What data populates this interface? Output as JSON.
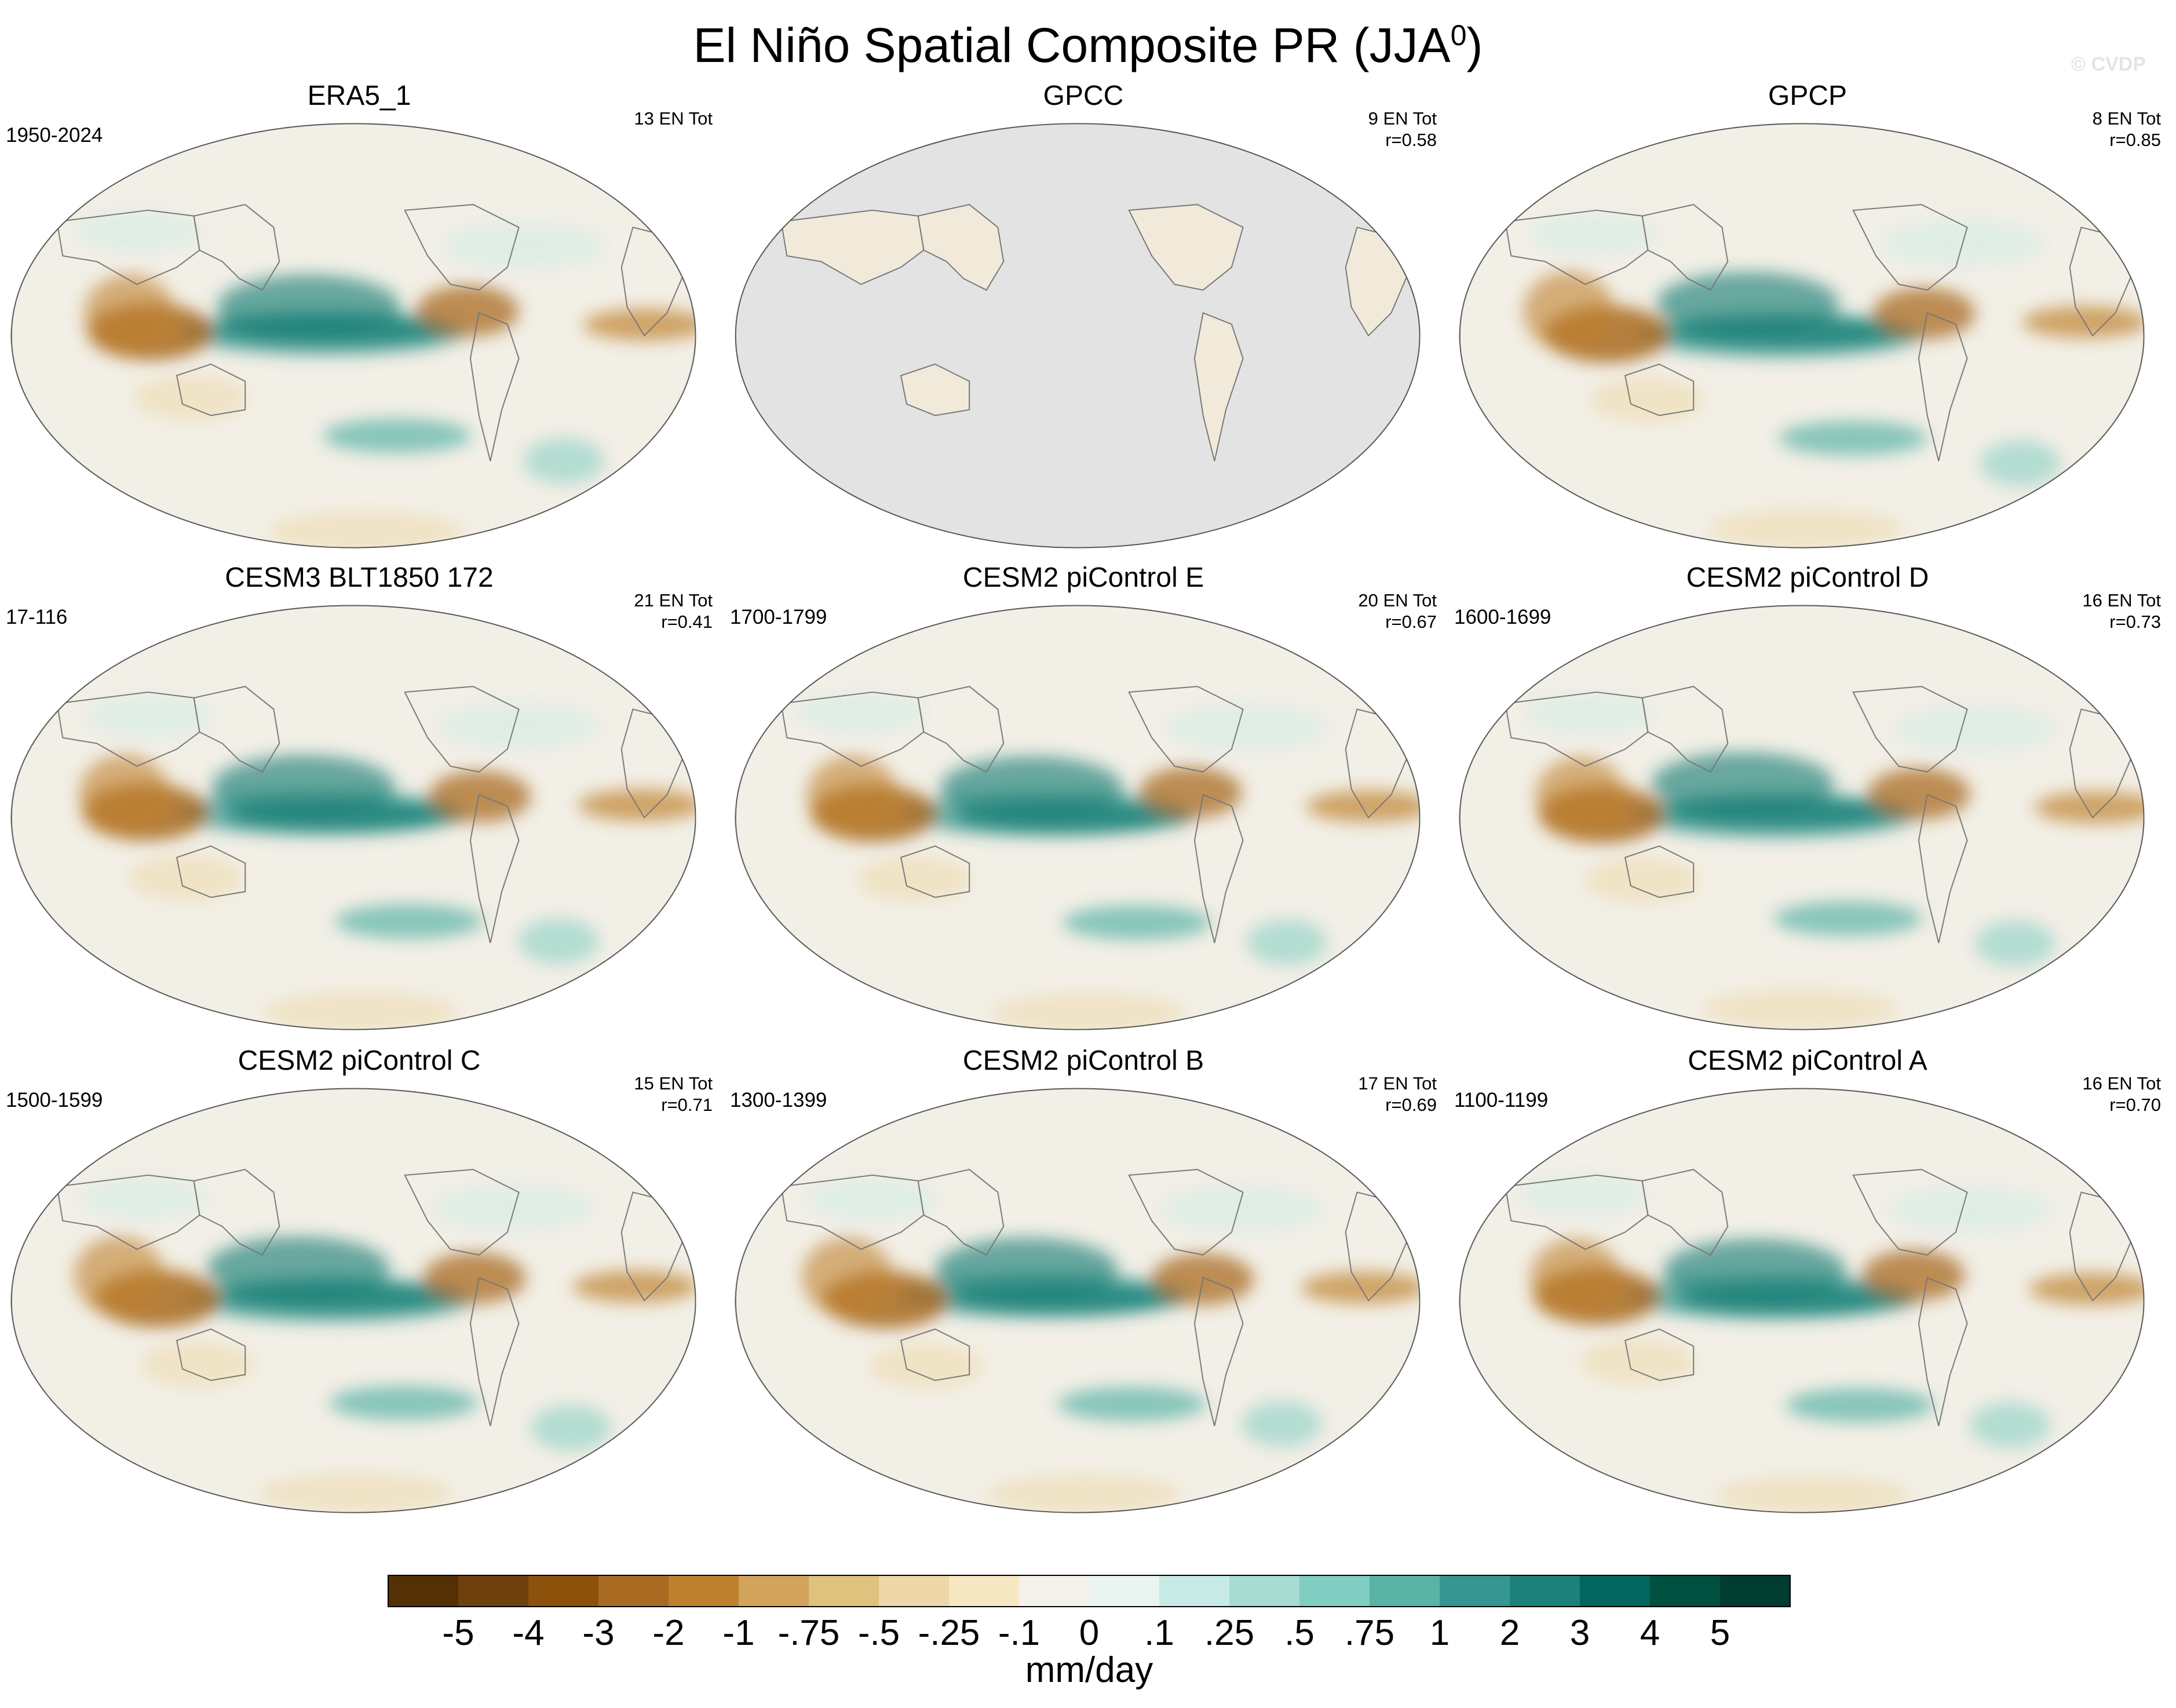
{
  "figure": {
    "title": "El Niño Spatial Composite PR (JJA",
    "title_superscript": "0",
    "title_close": ")",
    "watermark": "© CVDP"
  },
  "panels": [
    {
      "title": "ERA5_1",
      "period": "1950-2024",
      "events": "13 EN Tot",
      "corr": "",
      "land_only": false
    },
    {
      "title": "GPCC",
      "period": "",
      "events": "9 EN Tot",
      "corr": "r=0.58",
      "land_only": true
    },
    {
      "title": "GPCP",
      "period": "",
      "events": "8 EN Tot",
      "corr": "r=0.85",
      "land_only": false
    },
    {
      "title": "CESM3 BLT1850 172",
      "period": "17-116",
      "events": "21 EN Tot",
      "corr": "r=0.41",
      "land_only": false
    },
    {
      "title": "CESM2 piControl E",
      "period": "1700-1799",
      "events": "20 EN Tot",
      "corr": "r=0.67",
      "land_only": false
    },
    {
      "title": "CESM2 piControl D",
      "period": "1600-1699",
      "events": "16 EN Tot",
      "corr": "r=0.73",
      "land_only": false
    },
    {
      "title": "CESM2 piControl C",
      "period": "1500-1599",
      "events": "15 EN Tot",
      "corr": "r=0.71",
      "land_only": false
    },
    {
      "title": "CESM2 piControl B",
      "period": "1300-1399",
      "events": "17 EN Tot",
      "corr": "r=0.69",
      "land_only": false
    },
    {
      "title": "CESM2 piControl A",
      "period": "1100-1199",
      "events": "16 EN Tot",
      "corr": "r=0.70",
      "land_only": false
    }
  ],
  "colorbar": {
    "unit": "mm/day",
    "labels": [
      "-5",
      "-4",
      "-3",
      "-2",
      "-1",
      "-.75",
      "-.5",
      "-.25",
      "-.1",
      "0",
      ".1",
      ".25",
      ".5",
      ".75",
      "1",
      "2",
      "3",
      "4",
      "5"
    ],
    "colors": [
      "#543005",
      "#6e400c",
      "#8c510a",
      "#a96b22",
      "#bf812d",
      "#d2a35a",
      "#dfc27d",
      "#eed8aa",
      "#f6e8c3",
      "#f5f2eb",
      "#eaf4f1",
      "#c7eae5",
      "#a7dcd2",
      "#80cdc1",
      "#5ab4a6",
      "#35978f",
      "#1c8178",
      "#01665e",
      "#00503f",
      "#003c30"
    ]
  }
}
